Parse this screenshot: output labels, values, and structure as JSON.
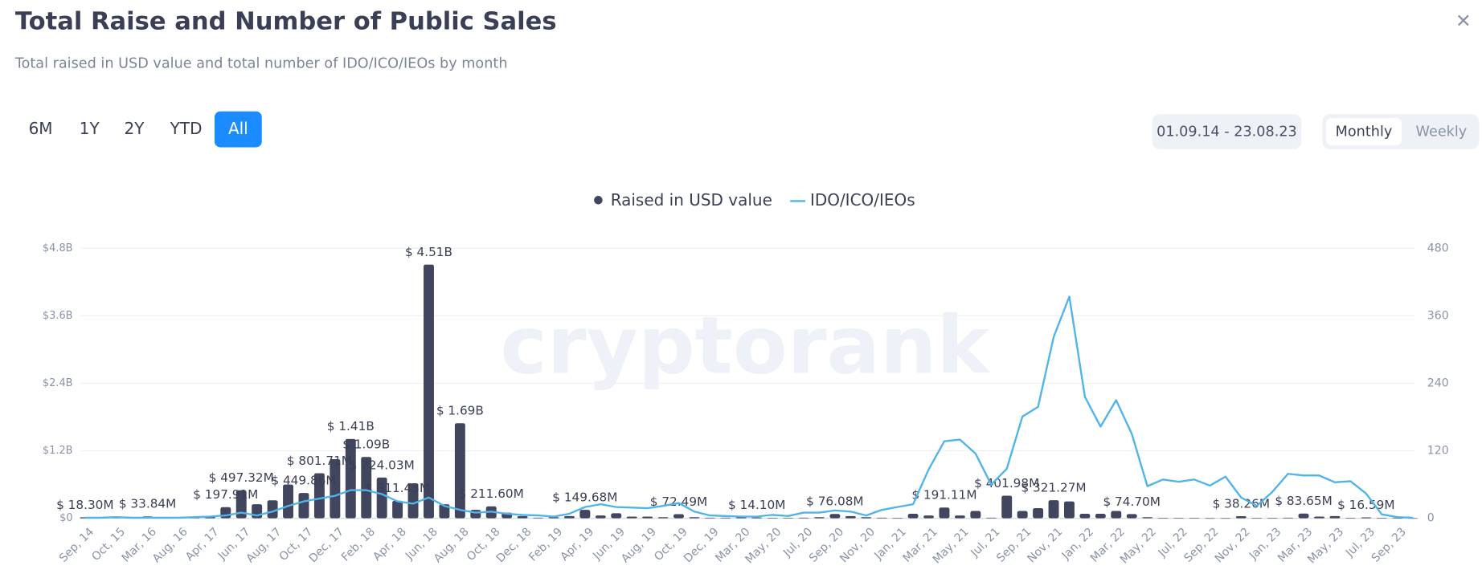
{
  "header": {
    "title": "Total Raise and Number of Public Sales",
    "subtitle": "Total raised in USD value and total number of IDO/ICO/IEOs by month"
  },
  "controls": {
    "ranges": [
      "6M",
      "1Y",
      "2Y",
      "YTD",
      "All"
    ],
    "active_range": "All",
    "date_range": "01.09.14 - 23.08.23",
    "intervals": [
      "Monthly",
      "Weekly"
    ],
    "active_interval": "Monthly"
  },
  "watermark": "cryptorank",
  "chart_data": {
    "type": "combo",
    "categories": [
      "Sep, 14",
      null,
      "Oct, 15",
      null,
      "Mar, 16",
      null,
      "Aug, 16",
      null,
      "Apr, 17",
      null,
      "Jun, 17",
      null,
      "Aug, 17",
      null,
      "Oct, 17",
      null,
      "Dec, 17",
      null,
      "Feb, 18",
      null,
      "Apr, 18",
      null,
      "Jun, 18",
      null,
      "Aug, 18",
      null,
      "Oct, 18",
      null,
      "Dec, 18",
      null,
      "Feb, 19",
      null,
      "Apr, 19",
      null,
      "Jun, 19",
      null,
      "Aug, 19",
      null,
      "Oct, 19",
      null,
      "Dec, 19",
      null,
      "Mar, 20",
      null,
      "May, 20",
      null,
      "Jul, 20",
      null,
      "Sep, 20",
      null,
      "Nov, 20",
      null,
      "Jan, 21",
      null,
      "Mar, 21",
      null,
      "May, 21",
      null,
      "Jul, 21",
      null,
      "Sep, 21",
      null,
      "Nov, 21",
      null,
      "Jan, 22",
      null,
      "Mar, 22",
      null,
      "May, 22",
      null,
      "Jul, 22",
      null,
      "Sep, 22",
      null,
      "Nov, 22",
      null,
      "Jan, 23",
      null,
      "Mar, 23",
      null,
      "May, 23",
      null,
      "Jul, 23",
      null,
      "Sep, 23",
      null
    ],
    "series": [
      {
        "name": "Raised in USD value",
        "type": "bar",
        "color": "#41465e",
        "values": [
          18300000,
          5000000,
          10000000,
          3000000,
          33840000,
          4000000,
          6000000,
          10000000,
          30000000,
          197910000,
          497320000,
          250000000,
          320000000,
          600000000,
          449860000,
          801710000,
          1050000000,
          1410000000,
          1090000000,
          724030000,
          311430000,
          620000000,
          4510000000,
          250000000,
          1690000000,
          150000000,
          211600000,
          100000000,
          40000000,
          10000000,
          20000000,
          40000000,
          149680000,
          50000000,
          90000000,
          30000000,
          30000000,
          20000000,
          72490000,
          20000000,
          10000000,
          10000000,
          20000000,
          14100000,
          5000000,
          5000000,
          10000000,
          20000000,
          76080000,
          40000000,
          20000000,
          10000000,
          5000000,
          80000000,
          50000000,
          191110000,
          50000000,
          130000000,
          10000000,
          401980000,
          130000000,
          180000000,
          321270000,
          300000000,
          80000000,
          80000000,
          130000000,
          74700000,
          20000000,
          5000000,
          3000000,
          3000000,
          2000000,
          2000000,
          38260000,
          5000000,
          5000000,
          10000000,
          83650000,
          30000000,
          40000000,
          5000000,
          16590000,
          5000000,
          3000000,
          1000000
        ],
        "value_labels": [
          "$ 18.30M",
          null,
          null,
          null,
          "$ 33.84M",
          null,
          null,
          null,
          null,
          "$ 197.91M",
          "$ 497.32M",
          null,
          null,
          null,
          "$ 449.86M",
          "$ 801.71M",
          null,
          "$ 1.41B",
          "$ 1.09B",
          "$ 724.03M",
          "$ 311.43M",
          null,
          "$ 4.51B",
          null,
          "$ 1.69B",
          null,
          "$ 211.60M",
          null,
          null,
          null,
          null,
          null,
          "$ 149.68M",
          null,
          null,
          null,
          null,
          null,
          "$ 72.49M",
          null,
          null,
          null,
          null,
          "$ 14.10M",
          null,
          null,
          null,
          null,
          "$ 76.08M",
          null,
          null,
          null,
          null,
          null,
          null,
          "$ 191.11M",
          null,
          null,
          null,
          "$ 401.98M",
          null,
          null,
          "$ 321.27M",
          null,
          null,
          null,
          null,
          "$ 74.70M",
          null,
          null,
          null,
          null,
          null,
          null,
          "$ 38.26M",
          null,
          null,
          null,
          "$ 83.65M",
          null,
          null,
          null,
          "$ 16.59M",
          null,
          null,
          null
        ]
      },
      {
        "name": "IDO/ICO/IEOs",
        "type": "line",
        "axis": "y2",
        "color": "#4fb4ea",
        "values": [
          1,
          1,
          2,
          1,
          1,
          1,
          1,
          2,
          3,
          5,
          10,
          5,
          12,
          22,
          30,
          35,
          40,
          50,
          50,
          43,
          30,
          26,
          37,
          22,
          15,
          10,
          12,
          8,
          6,
          5,
          3,
          8,
          20,
          25,
          20,
          19,
          18,
          22,
          27,
          12,
          5,
          4,
          3,
          3,
          6,
          4,
          10,
          10,
          14,
          12,
          5,
          15,
          20,
          25,
          87,
          137,
          140,
          115,
          60,
          88,
          181,
          198,
          322,
          394,
          216,
          163,
          210,
          150,
          57,
          69,
          65,
          69,
          58,
          74,
          37,
          22,
          47,
          79,
          76,
          76,
          64,
          66,
          44,
          7,
          2,
          1
        ]
      }
    ],
    "ylim": [
      0,
      4800000000
    ],
    "yticks": [
      {
        "value": 0,
        "label": "$0"
      },
      {
        "value": 1200000000,
        "label": "$1.2B"
      },
      {
        "value": 2400000000,
        "label": "$2.4B"
      },
      {
        "value": 3600000000,
        "label": "$3.6B"
      },
      {
        "value": 4800000000,
        "label": "$4.8B"
      }
    ],
    "y2lim": [
      0,
      480
    ],
    "y2ticks": [
      0,
      120,
      240,
      360,
      480
    ],
    "grid": true,
    "legend": "top"
  }
}
